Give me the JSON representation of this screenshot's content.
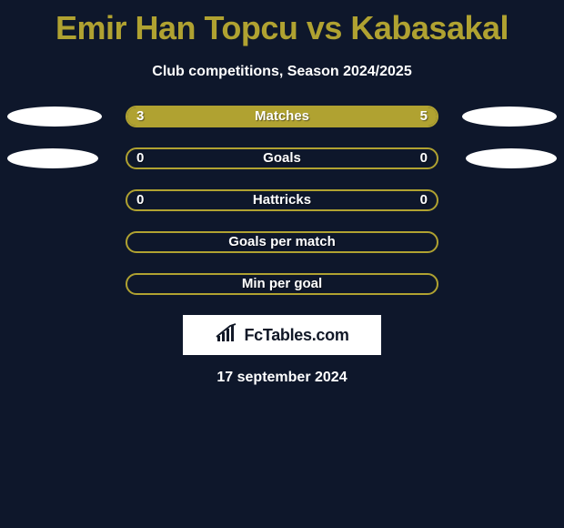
{
  "header": {
    "title": "Emir Han Topcu vs Kabasakal",
    "subtitle": "Club competitions, Season 2024/2025"
  },
  "stats": {
    "bar_border_color": "#b0a231",
    "fill_color_left": "#b0a231",
    "fill_color_right": "#b0a231",
    "background_color": "#0e172b",
    "badge_rows": [
      0,
      1
    ],
    "badge_left_widths": [
      104,
      100
    ],
    "badge_right_widths": [
      104,
      100
    ],
    "rows": [
      {
        "label": "Matches",
        "left": "3",
        "right": "5",
        "left_pct": 37.5,
        "right_pct": 62.5
      },
      {
        "label": "Goals",
        "left": "0",
        "right": "0",
        "left_pct": 0,
        "right_pct": 0
      },
      {
        "label": "Hattricks",
        "left": "0",
        "right": "0",
        "left_pct": 0,
        "right_pct": 0
      },
      {
        "label": "Goals per match",
        "left": "",
        "right": "",
        "left_pct": 0,
        "right_pct": 0
      },
      {
        "label": "Min per goal",
        "left": "",
        "right": "",
        "left_pct": 0,
        "right_pct": 0
      }
    ]
  },
  "branding": {
    "text": "FcTables.com"
  },
  "footer": {
    "date": "17 september 2024"
  }
}
